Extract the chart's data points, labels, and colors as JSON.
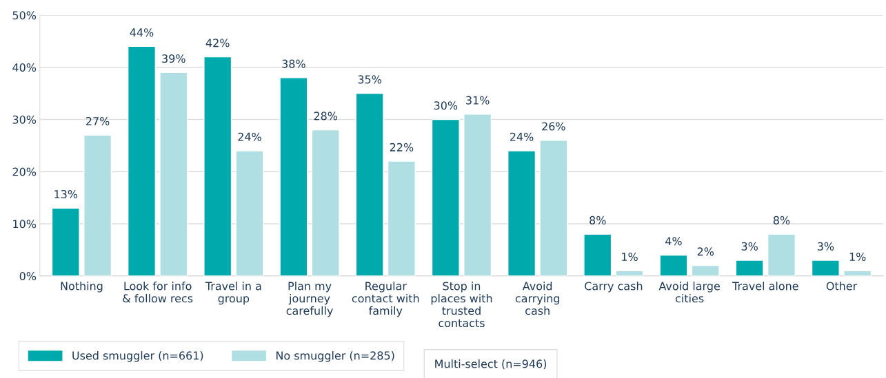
{
  "chart_data": {
    "type": "bar",
    "categories": [
      "Nothing",
      "Look for info\n& follow recs",
      "Travel in a\ngroup",
      "Plan my\njourney\ncarefully",
      "Regular\ncontact with\nfamily",
      "Stop in\nplaces with\ntrusted\ncontacts",
      "Avoid\ncarrying\ncash",
      "Carry cash",
      "Avoid large\ncities",
      "Travel alone",
      "Other"
    ],
    "series": [
      {
        "name": "Used smuggler (n=661)",
        "color": "#00a9ab",
        "values": [
          13,
          44,
          42,
          38,
          35,
          30,
          24,
          8,
          4,
          3,
          3
        ],
        "value_labels": [
          "13%",
          "44%",
          "42%",
          "38%",
          "35%",
          "30%",
          "24%",
          "8%",
          "4%",
          "3%",
          "3%"
        ]
      },
      {
        "name": "No smuggler (n=285)",
        "color": "#b0dfe3",
        "values": [
          27,
          39,
          24,
          28,
          22,
          31,
          26,
          1,
          2,
          8,
          1
        ],
        "value_labels": [
          "27%",
          "39%",
          "24%",
          "28%",
          "22%",
          "31%",
          "26%",
          "1%",
          "2%",
          "8%",
          "1%"
        ]
      }
    ],
    "ylim": [
      0,
      50
    ],
    "yticks": [
      {
        "value": 0,
        "label": "0%"
      },
      {
        "value": 10,
        "label": "10%"
      },
      {
        "value": 20,
        "label": "20%"
      },
      {
        "value": 30,
        "label": "30%"
      },
      {
        "value": 40,
        "label": "40%"
      },
      {
        "value": 50,
        "label": "50%"
      }
    ],
    "grid": "y",
    "legend": "bottom left",
    "annotations": [
      "Multi-select (n=946)"
    ]
  }
}
